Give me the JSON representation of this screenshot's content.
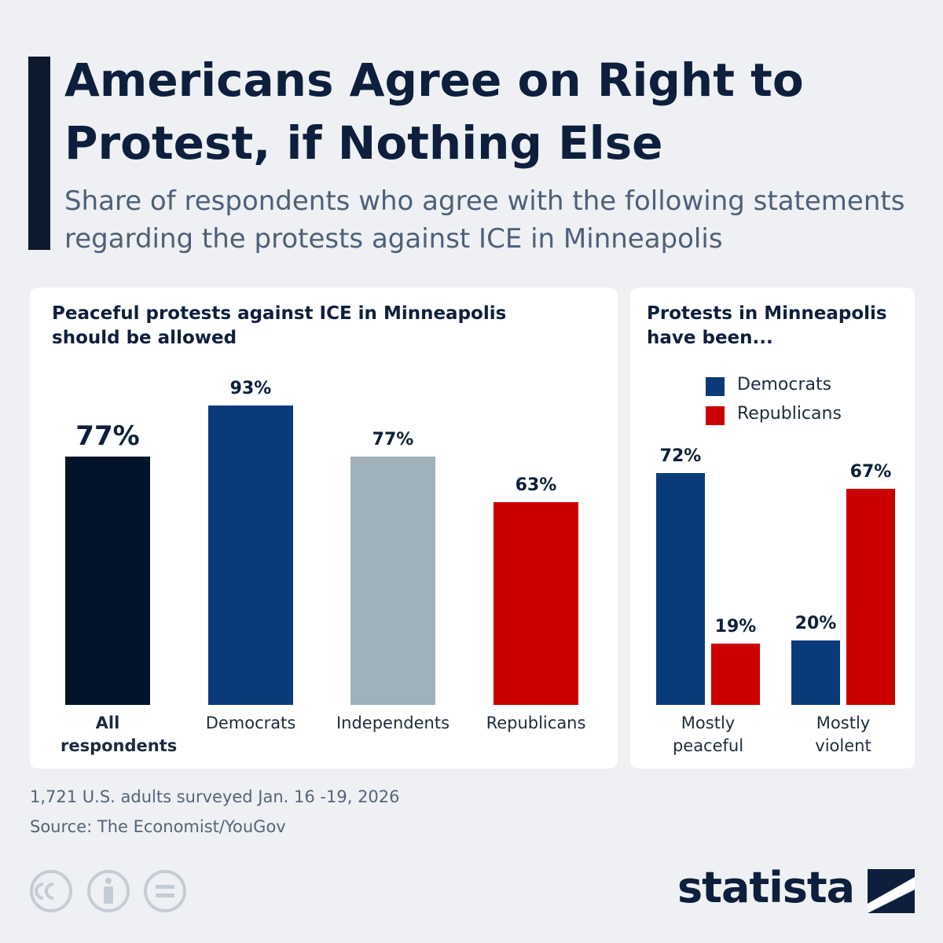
{
  "title": "Americans Agree on Right to Protest, if Nothing Else",
  "subtitle": "Share of respondents who agree with the following statements regarding the protests against ICE in Minneapolis",
  "note": "1,721 U.S. adults surveyed Jan. 16 -19, 2026",
  "source": "Source: The Economist/YouGov",
  "brand": "statista",
  "chart_data": [
    {
      "type": "bar",
      "title": "Peaceful protests against ICE in Minneapolis should be allowed",
      "categories": [
        "All respondents",
        "Democrats",
        "Independents",
        "Republicans"
      ],
      "values": [
        77,
        93,
        77,
        63
      ],
      "value_labels": [
        "77%",
        "93%",
        "77%",
        "63%"
      ],
      "colors": [
        "#021429",
        "#0b3a7a",
        "#9fb2bb",
        "#cc0000"
      ],
      "ylim": [
        0,
        100
      ]
    },
    {
      "type": "grouped_bar",
      "title": "Protests in Minneapolis have been...",
      "categories": [
        "Mostly peaceful",
        "Mostly violent"
      ],
      "series": [
        {
          "name": "Democrats",
          "color": "#0b3a7a",
          "values": [
            72,
            20
          ],
          "value_labels": [
            "72%",
            "20%"
          ]
        },
        {
          "name": "Republicans",
          "color": "#cc0000",
          "values": [
            19,
            67
          ],
          "value_labels": [
            "19%",
            "67%"
          ]
        }
      ],
      "ylim": [
        0,
        100
      ]
    }
  ]
}
